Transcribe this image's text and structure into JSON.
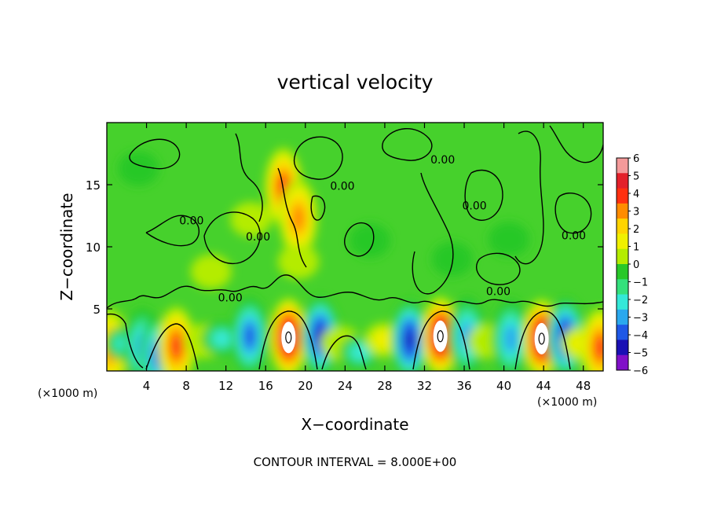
{
  "chart_data": {
    "type": "heatmap",
    "title": "vertical velocity",
    "xlabel": "X−coordinate",
    "ylabel": "Z−coordinate",
    "x_unit_left": "(×1000 m)",
    "x_unit_right": "(×1000 m)",
    "footer": "CONTOUR INTERVAL = 8.000E+00",
    "xlim": [
      0,
      50
    ],
    "ylim": [
      0,
      20
    ],
    "x_ticks": [
      4,
      8,
      12,
      16,
      20,
      24,
      28,
      32,
      36,
      40,
      44,
      48
    ],
    "y_ticks": [
      5,
      10,
      15
    ],
    "colorbar": {
      "range": [
        -6,
        6
      ],
      "tick_labels": [
        "6",
        "5",
        "4",
        "3",
        "2",
        "1",
        "0",
        "−1",
        "−2",
        "−3",
        "−4",
        "−5",
        "−6"
      ],
      "colors": [
        "#f49a9a",
        "#e3202a",
        "#ff3010",
        "#ff8c00",
        "#ffd400",
        "#f0f000",
        "#b4ec00",
        "#28c828",
        "#34e07c",
        "#34e8d8",
        "#2aa8ee",
        "#1e58e6",
        "#1a10b4",
        "#8010c8"
      ]
    },
    "contour_labels": [
      {
        "text": "0.00",
        "x": 32.6,
        "z": 16.7
      },
      {
        "text": "0.00",
        "x": 22.5,
        "z": 14.6
      },
      {
        "text": "0.00",
        "x": 35.8,
        "z": 13.0
      },
      {
        "text": "0.00",
        "x": 7.3,
        "z": 11.8
      },
      {
        "text": "0.00",
        "x": 14.0,
        "z": 10.5
      },
      {
        "text": "0.00",
        "x": 45.8,
        "z": 10.6
      },
      {
        "text": "0.00",
        "x": 38.2,
        "z": 6.1
      },
      {
        "text": "0.00",
        "x": 11.2,
        "z": 5.6
      }
    ],
    "extrema": [
      {
        "x": 0.3,
        "z": 1.8,
        "w": 3.0
      },
      {
        "x": 1.8,
        "z": 2.2,
        "w": -2.0
      },
      {
        "x": 3.6,
        "z": 1.9,
        "w": -3.0
      },
      {
        "x": 5.2,
        "z": 1.3,
        "w": -4.0
      },
      {
        "x": 7.0,
        "z": 2.0,
        "w": 4.0
      },
      {
        "x": 9.8,
        "z": 2.4,
        "w": 1.2
      },
      {
        "x": 11.6,
        "z": 2.6,
        "w": -2.0
      },
      {
        "x": 14.4,
        "z": 2.8,
        "w": -3.5
      },
      {
        "x": 18.3,
        "z": 2.7,
        "w": 6.0
      },
      {
        "x": 21.5,
        "z": 2.8,
        "w": -5.0
      },
      {
        "x": 23.6,
        "z": 2.2,
        "w": 1.0
      },
      {
        "x": 25.5,
        "z": 1.5,
        "w": -2.0
      },
      {
        "x": 28.0,
        "z": 2.5,
        "w": 1.5
      },
      {
        "x": 30.5,
        "z": 2.5,
        "w": -5.5
      },
      {
        "x": 33.6,
        "z": 2.8,
        "w": 6.0
      },
      {
        "x": 36.3,
        "z": 2.8,
        "w": -3.0
      },
      {
        "x": 38.4,
        "z": 2.4,
        "w": 1.0
      },
      {
        "x": 40.7,
        "z": 2.6,
        "w": -3.0
      },
      {
        "x": 43.8,
        "z": 2.6,
        "w": 6.0
      },
      {
        "x": 46.2,
        "z": 2.7,
        "w": -5.0
      },
      {
        "x": 47.8,
        "z": 2.2,
        "w": 1.5
      },
      {
        "x": 49.7,
        "z": 1.9,
        "w": 4.0
      },
      {
        "x": 17.8,
        "z": 14.8,
        "w": 4.0
      },
      {
        "x": 19.3,
        "z": 12.3,
        "w": 3.0
      },
      {
        "x": 19.3,
        "z": 8.8,
        "w": 1.0
      },
      {
        "x": 14.5,
        "z": 12.2,
        "w": 0.8
      },
      {
        "x": 10.5,
        "z": 8.0,
        "w": 0.6
      },
      {
        "x": 3.2,
        "z": 16.3,
        "w": -1.0
      },
      {
        "x": 40.5,
        "z": 10.6,
        "w": -1.0
      },
      {
        "x": 26.5,
        "z": 10.5,
        "w": -0.8
      },
      {
        "x": 34.8,
        "z": 9.0,
        "w": -0.7
      }
    ]
  }
}
